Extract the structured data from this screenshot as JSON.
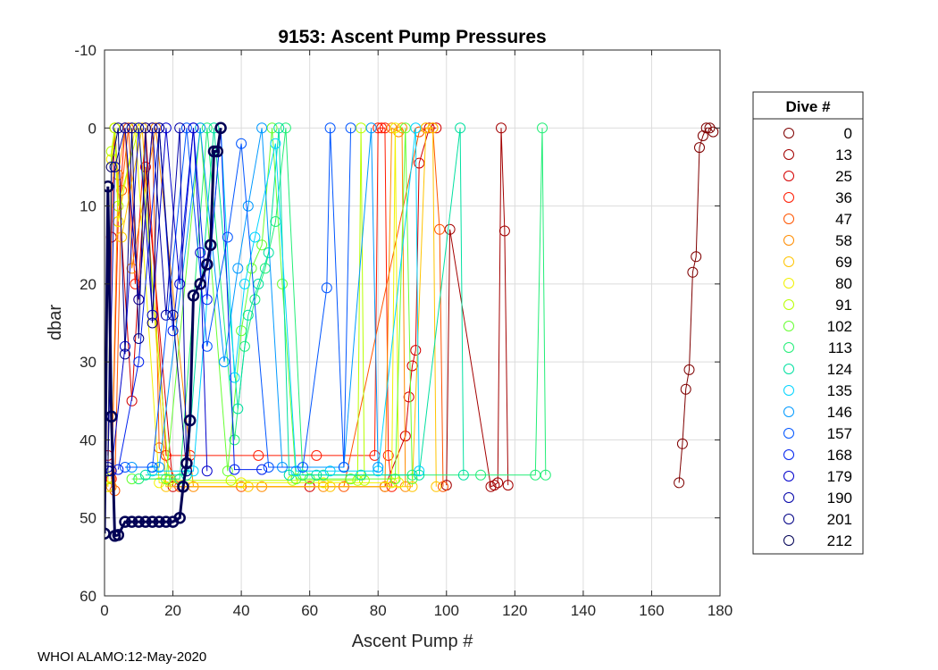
{
  "footer": "WHOI ALAMO:12-May-2020",
  "chart_data": {
    "type": "line",
    "title": "9153: Ascent Pump Pressures",
    "xlabel": "Ascent Pump #",
    "ylabel": "dbar",
    "xlim": [
      0,
      180
    ],
    "ylim": [
      -10,
      60
    ],
    "y_reversed": true,
    "grid": true,
    "marker": "open-circle",
    "xticks": [
      0,
      20,
      40,
      60,
      80,
      100,
      120,
      140,
      160,
      180
    ],
    "xtick_labels": [
      "0",
      "20",
      "40",
      "60",
      "80",
      "100",
      "120",
      "140",
      "160",
      "180"
    ],
    "yticks": [
      -10,
      0,
      10,
      20,
      30,
      40,
      50,
      60
    ],
    "ytick_labels": [
      "-10",
      "0",
      "10",
      "20",
      "30",
      "40",
      "50",
      "60"
    ],
    "legend_title": "Dive #",
    "legend_position": "outside-right",
    "series": [
      {
        "name": "0",
        "color": "#7f0000",
        "x": [
          168,
          169,
          170,
          171,
          172,
          173,
          174,
          175,
          176,
          177,
          178
        ],
        "y": [
          45.5,
          40.5,
          33.5,
          31,
          18.5,
          16.5,
          2.5,
          1,
          0,
          0,
          0.5
        ]
      },
      {
        "name": "13",
        "color": "#a30000",
        "x": [
          100,
          101,
          113,
          114,
          115,
          116,
          117,
          118
        ],
        "y": [
          45.8,
          13,
          46,
          45.8,
          45.5,
          0,
          13.2,
          45.8
        ]
      },
      {
        "name": "25",
        "color": "#d40000",
        "x": [
          1,
          2,
          3,
          8,
          12,
          20,
          60,
          82,
          88,
          89,
          90,
          91,
          92,
          95,
          97
        ],
        "y": [
          42,
          14,
          0,
          35,
          5,
          46,
          46,
          46,
          39.5,
          34.5,
          30.5,
          28.5,
          4.5,
          0,
          0
        ]
      },
      {
        "name": "36",
        "color": "#ff1a00",
        "x": [
          2,
          4,
          6,
          9,
          12,
          18,
          25,
          45,
          62,
          79,
          80,
          81,
          82,
          83,
          84
        ],
        "y": [
          45,
          12,
          0,
          20,
          0,
          42,
          42,
          42,
          42,
          42,
          0,
          0,
          0,
          42,
          46
        ]
      },
      {
        "name": "47",
        "color": "#ff5500",
        "x": [
          3,
          5,
          7,
          10,
          14,
          16,
          22,
          40,
          70,
          92,
          94,
          96,
          98,
          99
        ],
        "y": [
          46.5,
          8,
          0,
          22,
          0,
          41,
          46,
          46,
          46,
          0.5,
          0,
          0,
          13,
          46
        ]
      },
      {
        "name": "58",
        "color": "#ff8c00",
        "x": [
          2,
          4,
          6,
          8,
          15,
          26,
          46,
          64,
          82,
          84,
          86,
          87,
          88
        ],
        "y": [
          46,
          6,
          0,
          18,
          0,
          46,
          46,
          46,
          46,
          0,
          0.5,
          0,
          46
        ]
      },
      {
        "name": "69",
        "color": "#ffc400",
        "x": [
          1,
          2,
          3,
          5,
          11,
          18,
          42,
          66,
          90,
          94,
          96,
          97
        ],
        "y": [
          46,
          5,
          0,
          14,
          0,
          46,
          46,
          46,
          46,
          0,
          0,
          46
        ]
      },
      {
        "name": "80",
        "color": "#f2f200",
        "x": [
          1,
          2,
          3,
          4,
          9,
          16,
          40,
          64,
          84,
          85,
          86
        ],
        "y": [
          46,
          4,
          0,
          12,
          0,
          45.5,
          45.5,
          45.5,
          45.5,
          0,
          45.5
        ]
      },
      {
        "name": "91",
        "color": "#b8ff00",
        "x": [
          1,
          2,
          3,
          4,
          10,
          19,
          37,
          55,
          74,
          75,
          76
        ],
        "y": [
          45,
          3,
          0,
          10,
          0,
          45.2,
          45.2,
          45.2,
          45.2,
          0,
          45.2
        ]
      },
      {
        "name": "102",
        "color": "#66ff33",
        "x": [
          8,
          18,
          28,
          36,
          40,
          43,
          46,
          49,
          52,
          56,
          60,
          72,
          85,
          88,
          90
        ],
        "y": [
          45,
          45,
          0,
          44,
          26,
          18,
          15,
          0,
          20,
          45,
          45,
          45,
          45,
          0,
          45
        ]
      },
      {
        "name": "113",
        "color": "#22ee77",
        "x": [
          10,
          22,
          30,
          38,
          41,
          44,
          47,
          50,
          53,
          58,
          64,
          90,
          110,
          126,
          128,
          129
        ],
        "y": [
          45,
          45,
          0,
          40,
          28,
          22,
          18,
          12,
          0,
          44.5,
          44.5,
          44.5,
          44.5,
          44.5,
          0,
          44.5
        ]
      },
      {
        "name": "124",
        "color": "#00e0a0",
        "x": [
          12,
          24,
          32,
          39,
          42,
          45,
          48,
          51,
          54,
          62,
          75,
          92,
          104,
          105
        ],
        "y": [
          44.5,
          44.5,
          0,
          36,
          24,
          20,
          16,
          0,
          44.5,
          44.5,
          44.5,
          44.5,
          0,
          44.5
        ]
      },
      {
        "name": "135",
        "color": "#00d4ff",
        "x": [
          14,
          26,
          34,
          38,
          41,
          44,
          50,
          56,
          66,
          80,
          91,
          92
        ],
        "y": [
          44,
          44,
          0,
          32,
          20,
          14,
          2,
          44,
          44,
          44,
          0,
          44
        ]
      },
      {
        "name": "146",
        "color": "#0099ff",
        "x": [
          8,
          16,
          28,
          35,
          39,
          42,
          46,
          52,
          70,
          78,
          80
        ],
        "y": [
          43.5,
          43.5,
          0,
          30,
          18,
          10,
          0,
          43.5,
          43.5,
          0,
          43.5
        ]
      },
      {
        "name": "157",
        "color": "#0055ff",
        "x": [
          6,
          14,
          24,
          30,
          36,
          40,
          48,
          58,
          65,
          66,
          70,
          72
        ],
        "y": [
          43.5,
          43.5,
          0,
          28,
          14,
          2,
          43.5,
          43.5,
          20.5,
          0,
          43.5,
          0
        ]
      },
      {
        "name": "168",
        "color": "#0022ee",
        "x": [
          4,
          10,
          16,
          20,
          26,
          30,
          34,
          38,
          46
        ],
        "y": [
          43.8,
          30,
          0,
          26,
          0,
          22,
          0,
          43.8,
          43.8
        ]
      },
      {
        "name": "179",
        "color": "#0000cc",
        "x": [
          2,
          6,
          10,
          14,
          18,
          22,
          26,
          28,
          30
        ],
        "y": [
          44,
          28,
          0,
          24,
          0,
          20,
          0,
          16,
          44
        ]
      },
      {
        "name": "190",
        "color": "#0000a8",
        "x": [
          1,
          3,
          6,
          10,
          14,
          18,
          22,
          24
        ],
        "y": [
          43.5,
          5,
          0,
          22,
          0,
          24,
          0,
          44
        ]
      },
      {
        "name": "201",
        "color": "#000085",
        "x": [
          1,
          2,
          4,
          6,
          8,
          10,
          12,
          14,
          16,
          20,
          24
        ],
        "y": [
          44,
          5,
          0,
          29,
          0,
          27,
          0,
          25,
          0,
          24,
          44
        ]
      },
      {
        "name": "212",
        "color": "#000055",
        "x": [
          0,
          1,
          2,
          3,
          4,
          6,
          8,
          10,
          12,
          14,
          16,
          18,
          20,
          22,
          23,
          24,
          25,
          26,
          28,
          30,
          31,
          32,
          33,
          34
        ],
        "y": [
          52,
          7.5,
          37,
          52.3,
          52.2,
          50.5,
          50.5,
          50.5,
          50.5,
          50.5,
          50.5,
          50.5,
          50.5,
          50,
          46,
          43,
          37.5,
          21.5,
          20,
          17.5,
          15,
          3,
          3,
          0
        ]
      }
    ]
  }
}
